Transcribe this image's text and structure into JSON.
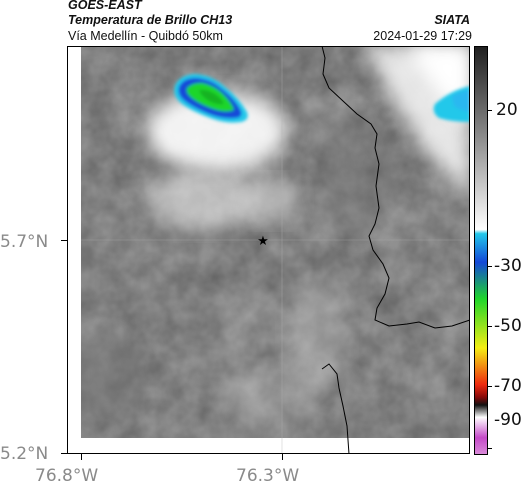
{
  "header": {
    "satellite": "GOES-EAST",
    "product": "Temperatura de Brillo CH13",
    "route": "Vía Medellín - Quibdó 50km",
    "agency": "SIATA",
    "datetime": "2024-01-29 17:29"
  },
  "map": {
    "lat_ticks": [
      "5.7°N",
      "5.2°N"
    ],
    "lon_ticks": [
      "76.8°W",
      "76.3°W"
    ],
    "marker_icon": "star-icon"
  },
  "colorbar": {
    "tick_labels": [
      "20",
      "-30",
      "-50",
      "-70",
      "-90"
    ],
    "colors": {
      "warm_white": "#ffffff",
      "warm_gray": "#8a8a8a",
      "warm_black": "#1e1e1e",
      "cyan": "#22c8ea",
      "blue": "#1448d8",
      "green": "#1fd62a",
      "yellow": "#f4ee14",
      "red": "#ee2a10",
      "dark_red": "#8a0a0a",
      "magenta": "#c44ac8"
    }
  }
}
